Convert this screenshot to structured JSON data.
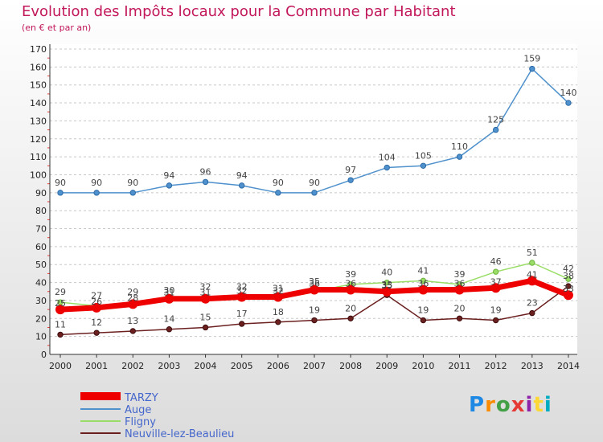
{
  "header": {
    "title": "Evolution des Impôts locaux pour la Commune par Habitant",
    "subtitle": "(en € et par an)"
  },
  "logo": {
    "text": "Proxiti",
    "colors": [
      "#1e88e5",
      "#fb8c00",
      "#43a047",
      "#e53935",
      "#8e24aa",
      "#fdd835",
      "#00acc1"
    ]
  },
  "chart_data": {
    "type": "line",
    "title": "Evolution des Impôts locaux pour la Commune par Habitant",
    "subtitle": "(en € et par an)",
    "xlabel": "",
    "ylabel": "",
    "ylim": [
      0,
      170
    ],
    "yticks": [
      0,
      10,
      20,
      30,
      40,
      50,
      60,
      70,
      80,
      90,
      100,
      110,
      120,
      130,
      140,
      150,
      160,
      170
    ],
    "grid": "horizontal dashed",
    "legend_position": "bottom-left",
    "x": [
      "2000",
      "2001",
      "2002",
      "2003",
      "2004",
      "2005",
      "2006",
      "2007",
      "2008",
      "2009",
      "2010",
      "2011",
      "2012",
      "2013",
      "2014"
    ],
    "series": [
      {
        "name": "TARZY",
        "color": "#ee0000",
        "values": [
          25,
          26,
          28,
          31,
          31,
          32,
          32,
          36,
          36,
          35,
          36,
          36,
          37,
          41,
          33
        ],
        "labels": [
          "",
          "",
          "",
          "",
          "",
          "",
          "",
          "",
          "",
          "",
          "",
          "",
          "",
          "",
          ""
        ]
      },
      {
        "name": "Auge",
        "color": "#4f91cc",
        "values": [
          90,
          90,
          90,
          94,
          96,
          94,
          90,
          90,
          97,
          104,
          105,
          110,
          125,
          159,
          140
        ],
        "labels": [
          "90",
          "90",
          "90",
          "94",
          "96",
          "94",
          "90",
          "90",
          "97",
          "104",
          "105",
          "110",
          "125",
          "159",
          "140"
        ]
      },
      {
        "name": "Fligny",
        "color": "#99dd66",
        "values": [
          29,
          27,
          29,
          30,
          32,
          32,
          31,
          35,
          39,
          40,
          41,
          39,
          46,
          51,
          42
        ],
        "labels": [
          "29",
          "27",
          "29",
          "30",
          "32",
          "32",
          "31",
          "35",
          "39",
          "40",
          "41",
          "39",
          "46",
          "51",
          "42"
        ]
      },
      {
        "name": "Neuville-lez-Beaulieu",
        "color": "#6b1f1f",
        "values": [
          11,
          12,
          13,
          14,
          15,
          17,
          18,
          19,
          20,
          33,
          19,
          20,
          19,
          23,
          38
        ],
        "labels": [
          "11",
          "12",
          "13",
          "14",
          "15",
          "17",
          "18",
          "19",
          "20",
          "33",
          "19",
          "20",
          "19",
          "23",
          "38"
        ]
      }
    ],
    "extra_labels": [
      {
        "x": "2000",
        "text": "25"
      },
      {
        "x": "2001",
        "text": "26"
      },
      {
        "x": "2002",
        "text": "28"
      },
      {
        "x": "2003",
        "text": "31"
      },
      {
        "x": "2004",
        "text": "31"
      },
      {
        "x": "2005",
        "text": "32"
      },
      {
        "x": "2006",
        "text": "32"
      },
      {
        "x": "2007",
        "text": "36"
      },
      {
        "x": "2008",
        "text": "36"
      },
      {
        "x": "2009",
        "text": "35"
      },
      {
        "x": "2010",
        "text": "36"
      },
      {
        "x": "2011",
        "text": "36"
      },
      {
        "x": "2012",
        "text": "37"
      },
      {
        "x": "2013",
        "text": "41"
      },
      {
        "x": "2014",
        "text": "33"
      }
    ]
  }
}
